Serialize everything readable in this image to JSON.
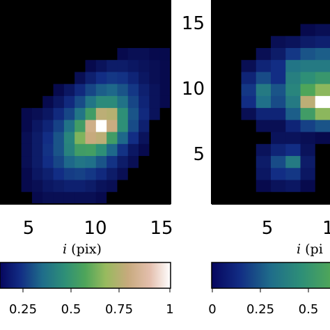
{
  "chart_data": [
    {
      "type": "heatmap",
      "panel": "left",
      "xlabel_var": "i",
      "xlabel_unit": "(pix)",
      "x_ticks": [
        "5",
        "10",
        "15"
      ],
      "y_ticks": [],
      "cells": [
        [
          0,
          0,
          0,
          0,
          0,
          0,
          0,
          0,
          0,
          0,
          0,
          0,
          0,
          0,
          0,
          0
        ],
        [
          0,
          0,
          0,
          0,
          0,
          0,
          0,
          0,
          0,
          0,
          0,
          0,
          0,
          0,
          0,
          0
        ],
        [
          0,
          0,
          0,
          0,
          0,
          0,
          0,
          0,
          0,
          0,
          0,
          0,
          0,
          0,
          0,
          0
        ],
        [
          0,
          0,
          0,
          0,
          0,
          0,
          0,
          0,
          0,
          0,
          0,
          0,
          0,
          0,
          0,
          0
        ],
        [
          0,
          0,
          0,
          0,
          0,
          0,
          0,
          0,
          0,
          0,
          0,
          0.04,
          0.05,
          0.05,
          0.04,
          0.04
        ],
        [
          0,
          0,
          0,
          0,
          0,
          0,
          0,
          0,
          0.04,
          0.06,
          0.08,
          0.08,
          0.07,
          0.06,
          0.05,
          0.04
        ],
        [
          0,
          0,
          0,
          0,
          0,
          0,
          0,
          0.05,
          0.09,
          0.12,
          0.14,
          0.13,
          0.1,
          0.07,
          0.05,
          0.04
        ],
        [
          0,
          0,
          0,
          0,
          0,
          0.04,
          0.07,
          0.11,
          0.17,
          0.22,
          0.24,
          0.2,
          0.14,
          0.09,
          0.06,
          0.04
        ],
        [
          0,
          0,
          0,
          0,
          0.04,
          0.07,
          0.11,
          0.18,
          0.28,
          0.36,
          0.36,
          0.27,
          0.17,
          0.1,
          0.06,
          0.04
        ],
        [
          0,
          0,
          0.04,
          0.05,
          0.07,
          0.11,
          0.17,
          0.28,
          0.45,
          0.72,
          0.7,
          0.38,
          0.2,
          0.11,
          0.06,
          0
        ],
        [
          0,
          0,
          0.04,
          0.07,
          0.1,
          0.16,
          0.27,
          0.45,
          0.78,
          1.0,
          0.76,
          0.38,
          0.18,
          0.09,
          0,
          0
        ],
        [
          0,
          0,
          0.05,
          0.08,
          0.12,
          0.2,
          0.34,
          0.58,
          0.75,
          0.72,
          0.45,
          0.24,
          0.12,
          0.06,
          0,
          0
        ],
        [
          0,
          0,
          0.05,
          0.08,
          0.13,
          0.2,
          0.33,
          0.45,
          0.46,
          0.38,
          0.24,
          0.13,
          0.07,
          0.04,
          0,
          0
        ],
        [
          0,
          0,
          0.05,
          0.08,
          0.12,
          0.17,
          0.24,
          0.28,
          0.26,
          0.2,
          0.13,
          0.08,
          0.05,
          0,
          0,
          0
        ],
        [
          0,
          0,
          0.04,
          0.07,
          0.09,
          0.12,
          0.15,
          0.16,
          0.14,
          0.11,
          0.08,
          0.05,
          0,
          0,
          0,
          0
        ],
        [
          0,
          0,
          0.04,
          0.05,
          0.07,
          0.08,
          0.09,
          0.09,
          0.08,
          0.06,
          0.05,
          0,
          0,
          0,
          0,
          0
        ],
        [
          0,
          0,
          0,
          0.04,
          0.05,
          0.05,
          0.05,
          0.05,
          0.05,
          0.04,
          0,
          0,
          0,
          0,
          0,
          0
        ]
      ],
      "colorbar": {
        "ticks": [
          "0.25",
          "0.5",
          "0.75",
          "1"
        ],
        "range": [
          0,
          1
        ]
      }
    },
    {
      "type": "heatmap",
      "panel": "right",
      "xlabel_var": "i",
      "xlabel_unit": "(pi",
      "x_ticks": [
        "5",
        "1"
      ],
      "y_ticks": [
        "5",
        "10",
        "15"
      ],
      "cells": [
        [
          0,
          0,
          0,
          0,
          0,
          0,
          0,
          0
        ],
        [
          0,
          0,
          0,
          0,
          0,
          0,
          0,
          0
        ],
        [
          0,
          0,
          0,
          0,
          0,
          0,
          0.04,
          0.05
        ],
        [
          0,
          0,
          0,
          0,
          0.05,
          0.06,
          0.08,
          0.09
        ],
        [
          0,
          0,
          0,
          0.05,
          0.08,
          0.14,
          0.2,
          0.22
        ],
        [
          0,
          0,
          0.05,
          0.1,
          0.12,
          0.28,
          0.3,
          0.3
        ],
        [
          0,
          0,
          0.1,
          0.18,
          0.12,
          0.32,
          0.38,
          0.42
        ],
        [
          0,
          0,
          0.14,
          0.3,
          0.2,
          0.34,
          0.5,
          0.6
        ],
        [
          0,
          0,
          0.12,
          0.26,
          0.18,
          0.3,
          0.72,
          1.0
        ],
        [
          0,
          0,
          0.05,
          0.1,
          0.1,
          0.22,
          0.45,
          0.6
        ],
        [
          0,
          0,
          0,
          0.05,
          0.05,
          0.1,
          0.16,
          0.2
        ],
        [
          0,
          0,
          0,
          0,
          0.06,
          0.06,
          0.05,
          0.04
        ],
        [
          0,
          0,
          0,
          0.06,
          0.1,
          0.12,
          0.06,
          0
        ],
        [
          0,
          0,
          0,
          0.08,
          0.18,
          0.3,
          0.08,
          0
        ],
        [
          0,
          0,
          0,
          0.07,
          0.12,
          0.14,
          0.07,
          0
        ],
        [
          0,
          0,
          0,
          0.04,
          0.06,
          0.07,
          0.04,
          0
        ],
        [
          0,
          0,
          0,
          0,
          0,
          0,
          0,
          0
        ]
      ],
      "colorbar": {
        "ticks": [
          "0",
          "0.25",
          "0.5"
        ],
        "range": [
          0,
          1
        ]
      }
    }
  ]
}
